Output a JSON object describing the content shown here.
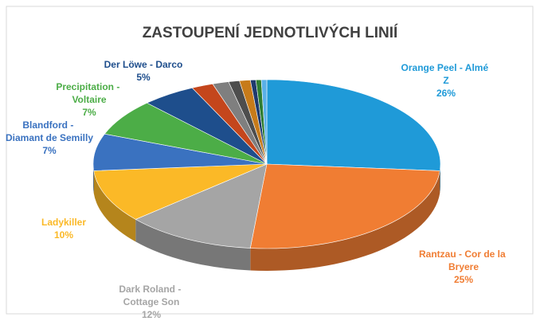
{
  "chart_data": {
    "type": "pie",
    "title": "ZASTOUPENÍ JEDNOTLIVÝCH LINIÍ",
    "categories": [
      "Orange Peel - Almé Z",
      "Rantzau - Cor de la Bryere",
      "Dark Roland - Cottage Son",
      "Ladykiller",
      "Blandford - Diamant de Semilly",
      "Precipitation - Voltaire",
      "Der Löwe - Darco",
      null,
      null,
      null,
      null,
      null,
      null,
      null
    ],
    "values": [
      26,
      25,
      12,
      10,
      7,
      7,
      5,
      2,
      1.5,
      1,
      1,
      0.5,
      0.5,
      0.5
    ],
    "value_labels": [
      "26%",
      "25%",
      "12%",
      "10%",
      "7%",
      "7%",
      "5%",
      null,
      null,
      null,
      null,
      null,
      null,
      null
    ],
    "colors": [
      "#1f9ad8",
      "#f07d33",
      "#a5a5a5",
      "#fbb927",
      "#3a72c0",
      "#4cad47",
      "#1e4e8c",
      "#c4461c",
      "#7f7f7f",
      "#4d4d4d",
      "#c77b1a",
      "#1f3a6e",
      "#2e7d32",
      "#5ab0e8"
    ]
  }
}
